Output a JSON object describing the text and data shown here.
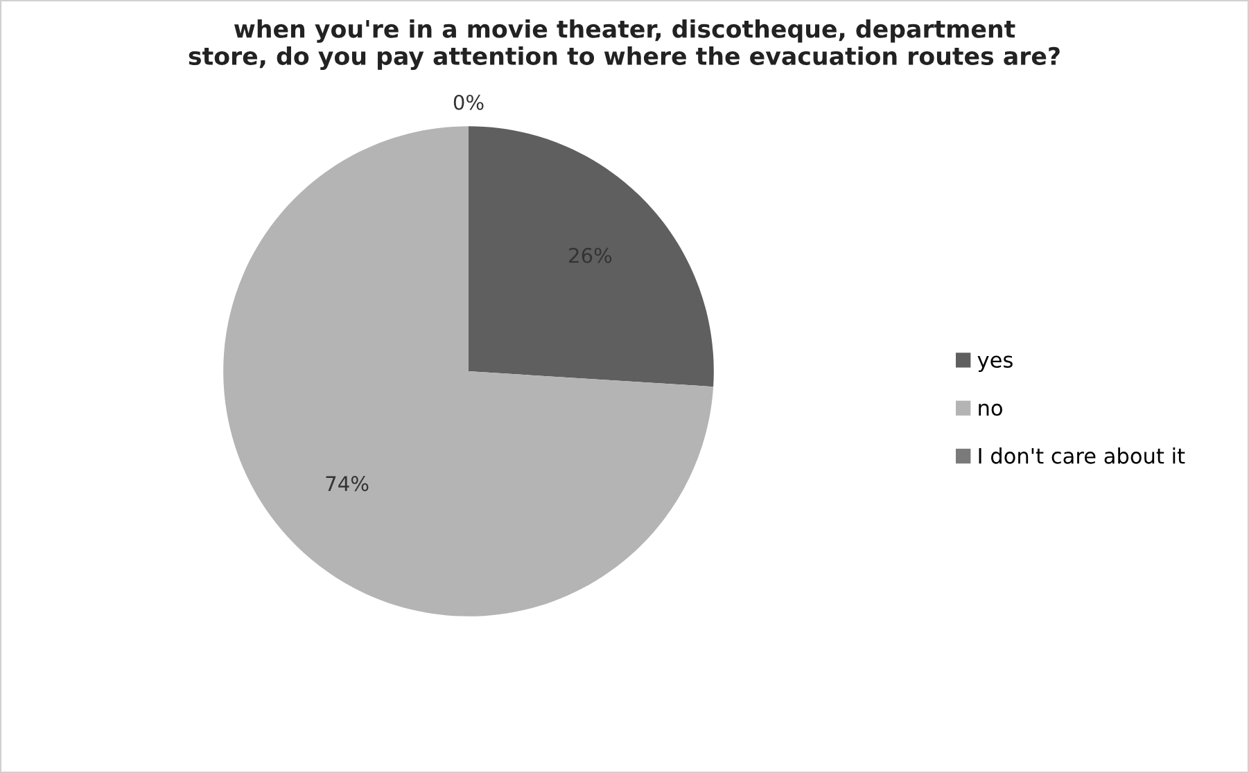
{
  "chart_data": {
    "type": "pie",
    "title": "when you're in a movie theater, discotheque, department\nstore, do you pay attention to where the evacuation routes are?",
    "categories": [
      "yes",
      "no",
      "I don't care about it"
    ],
    "values": [
      26,
      74,
      0
    ],
    "colors": [
      "#5f5f5f",
      "#b4b4b4",
      "#7a7a7a"
    ],
    "value_labels": [
      "26%",
      "74%",
      "0%"
    ],
    "legend": "right"
  }
}
